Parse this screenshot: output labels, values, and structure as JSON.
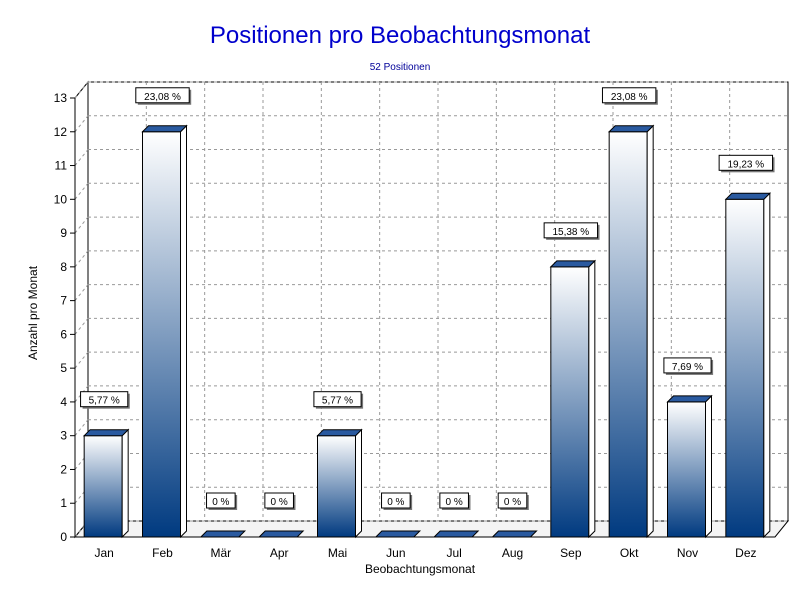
{
  "chart_data": {
    "type": "bar",
    "title": "Positionen pro Beobachtungsmonat",
    "subtitle": "52 Positionen",
    "xlabel": "Beobachtungsmonat",
    "ylabel": "Anzahl pro Monat",
    "ylim": [
      0,
      13
    ],
    "yticks": [
      "0",
      "1",
      "2",
      "3",
      "4",
      "5",
      "6",
      "7",
      "8",
      "9",
      "10",
      "11",
      "12",
      "13"
    ],
    "grid": true,
    "categories": [
      "Jan",
      "Feb",
      "Mär",
      "Apr",
      "Mai",
      "Jun",
      "Jul",
      "Aug",
      "Sep",
      "Okt",
      "Nov",
      "Dez"
    ],
    "values": [
      3,
      12,
      0,
      0,
      3,
      0,
      0,
      0,
      8,
      12,
      4,
      10
    ],
    "data_labels": [
      "5,77 %",
      "23,08 %",
      "0 %",
      "0 %",
      "5,77 %",
      "0 %",
      "0 %",
      "0 %",
      "15,38 %",
      "23,08 %",
      "7,69 %",
      "19,23 %"
    ],
    "colors": {
      "bar_top": "#ffffff",
      "bar_bottom": "#003a80",
      "bar_cap": "#2a5aa0",
      "title": "#0000cc",
      "subtitle": "#000099"
    }
  }
}
